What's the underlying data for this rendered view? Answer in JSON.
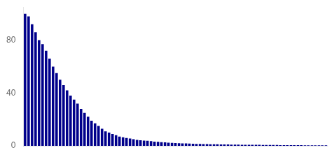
{
  "chart_data": {
    "type": "bar",
    "categories": [
      null,
      null,
      null,
      null,
      null,
      null,
      null,
      null,
      null,
      null,
      null,
      null,
      null,
      null,
      null,
      null,
      null,
      null,
      null,
      null,
      null,
      null,
      null,
      null,
      null,
      null,
      null,
      null,
      null,
      null,
      null,
      null,
      null,
      null,
      null,
      null,
      null,
      null,
      null,
      null,
      null,
      null,
      null,
      null,
      null,
      null,
      null,
      null,
      null,
      null,
      null,
      null,
      null,
      null,
      null,
      null,
      null,
      null,
      null,
      null,
      null,
      null,
      null,
      null,
      null,
      null,
      null,
      null,
      null,
      null,
      null,
      null,
      null,
      null,
      null,
      null,
      null,
      null,
      null,
      null,
      null,
      null,
      null,
      null,
      null,
      null,
      null
    ],
    "values": [
      100,
      98,
      92,
      86,
      80,
      77,
      72,
      66,
      60,
      55,
      50,
      46,
      42,
      38,
      35,
      32,
      28,
      25,
      22,
      19,
      17,
      15,
      13,
      11,
      10,
      9,
      8,
      7,
      6.5,
      6,
      5.5,
      5,
      4.5,
      4.2,
      4.0,
      3.8,
      3.5,
      3.2,
      3.0,
      2.8,
      2.6,
      2.4,
      2.2,
      2.1,
      2.0,
      1.9,
      1.8,
      1.7,
      1.6,
      1.5,
      1.4,
      1.35,
      1.3,
      1.25,
      1.2,
      1.15,
      1.1,
      1.05,
      1.0,
      0.95,
      0.9,
      0.88,
      0.85,
      0.82,
      0.8,
      0.78,
      0.75,
      0.73,
      0.7,
      0.68,
      0.65,
      0.63,
      0.61,
      0.59,
      0.57,
      0.55,
      0.53,
      0.51,
      0.5,
      0.48,
      0.46,
      0.44,
      0.42,
      0.4,
      0.38,
      0.36,
      0.34
    ],
    "color": "#00008B",
    "ylim": [
      0,
      105
    ],
    "yticks": [
      0,
      40,
      80
    ],
    "grid": false,
    "tick_labels": "y"
  }
}
